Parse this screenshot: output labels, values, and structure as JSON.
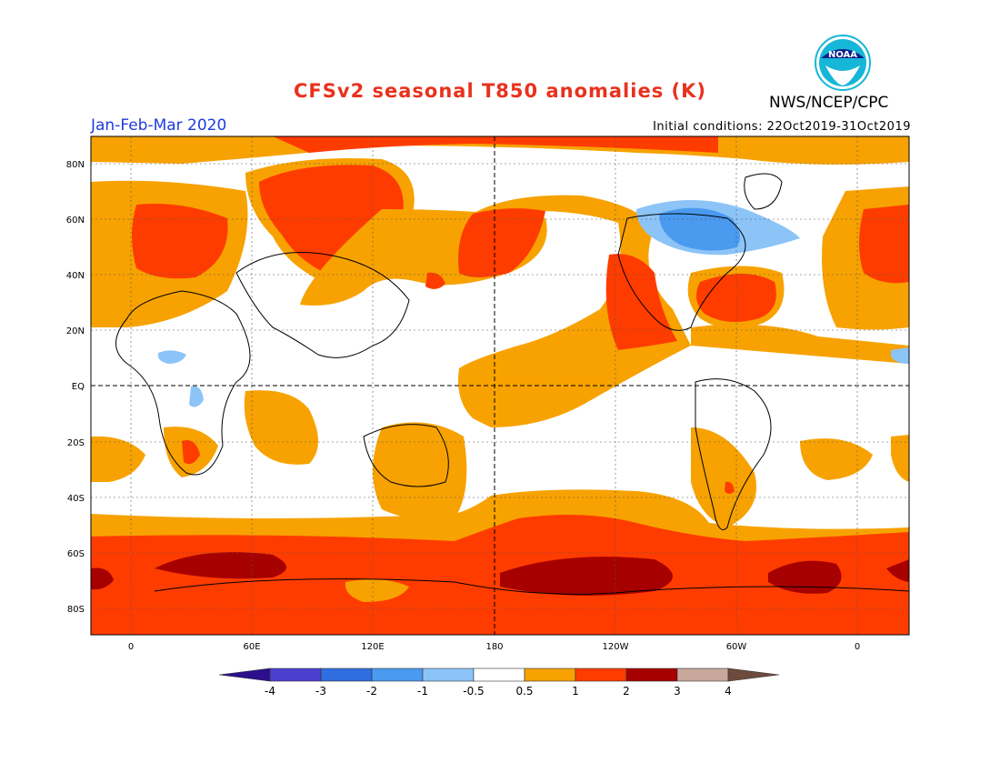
{
  "header": {
    "title": "CFSv2 seasonal T850 anomalies (K)",
    "agency": "NWS/NCEP/CPC",
    "season": "Jan-Feb-Mar 2020",
    "initial_conditions": "Initial conditions: 22Oct2019-31Oct2019",
    "logo_text": "NOAA"
  },
  "map": {
    "lat_labels": [
      "80N",
      "60N",
      "40N",
      "20N",
      "EQ",
      "20S",
      "40S",
      "60S",
      "80S"
    ],
    "lon_labels": [
      "0",
      "60E",
      "120E",
      "180",
      "120W",
      "60W",
      "0"
    ]
  },
  "colorbar": {
    "labels": [
      "-4",
      "-3",
      "-2",
      "-1",
      "-0.5",
      "0.5",
      "1",
      "2",
      "3",
      "4"
    ],
    "colors": [
      "#2b0f8c",
      "#4b3fd0",
      "#2f6ee0",
      "#4a9af0",
      "#8cc4f8",
      "#ffffff",
      "#f7a200",
      "#ff3c00",
      "#a70000",
      "#c8a89a",
      "#6e4a3c"
    ]
  }
}
